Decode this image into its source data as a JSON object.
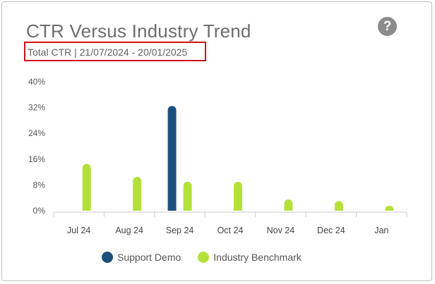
{
  "header": {
    "title": "CTR Versus Industry Trend",
    "subtitle": "Total CTR | 21/07/2024 - 20/01/2025",
    "help_icon_glyph": "?"
  },
  "chart_data": {
    "type": "bar",
    "title": "CTR Versus Industry Trend",
    "subtitle": "Total CTR | 21/07/2024 - 20/01/2025",
    "categories": [
      "Jul 24",
      "Aug 24",
      "Sep 24",
      "Oct 24",
      "Nov 24",
      "Dec 24",
      "Jan"
    ],
    "series": [
      {
        "name": "Support Demo",
        "color": "#1b4f7c",
        "values": [
          null,
          null,
          32.5,
          null,
          null,
          null,
          null
        ]
      },
      {
        "name": "Industry Benchmark",
        "color": "#b5e03a",
        "values": [
          14.5,
          10.5,
          9,
          9,
          3.5,
          3,
          0.5
        ]
      }
    ],
    "y_ticks": [
      0,
      8,
      16,
      24,
      32,
      40
    ],
    "y_tick_labels": [
      "0%",
      "8%",
      "16%",
      "24%",
      "32%",
      "40%"
    ],
    "ylim": [
      0,
      40
    ],
    "xlabel": "",
    "ylabel": "",
    "grid": false,
    "legend_position": "bottom"
  },
  "legend": {
    "items": [
      {
        "label": "Support Demo",
        "color": "#1b4f7c"
      },
      {
        "label": "Industry Benchmark",
        "color": "#b5e03a"
      }
    ]
  }
}
